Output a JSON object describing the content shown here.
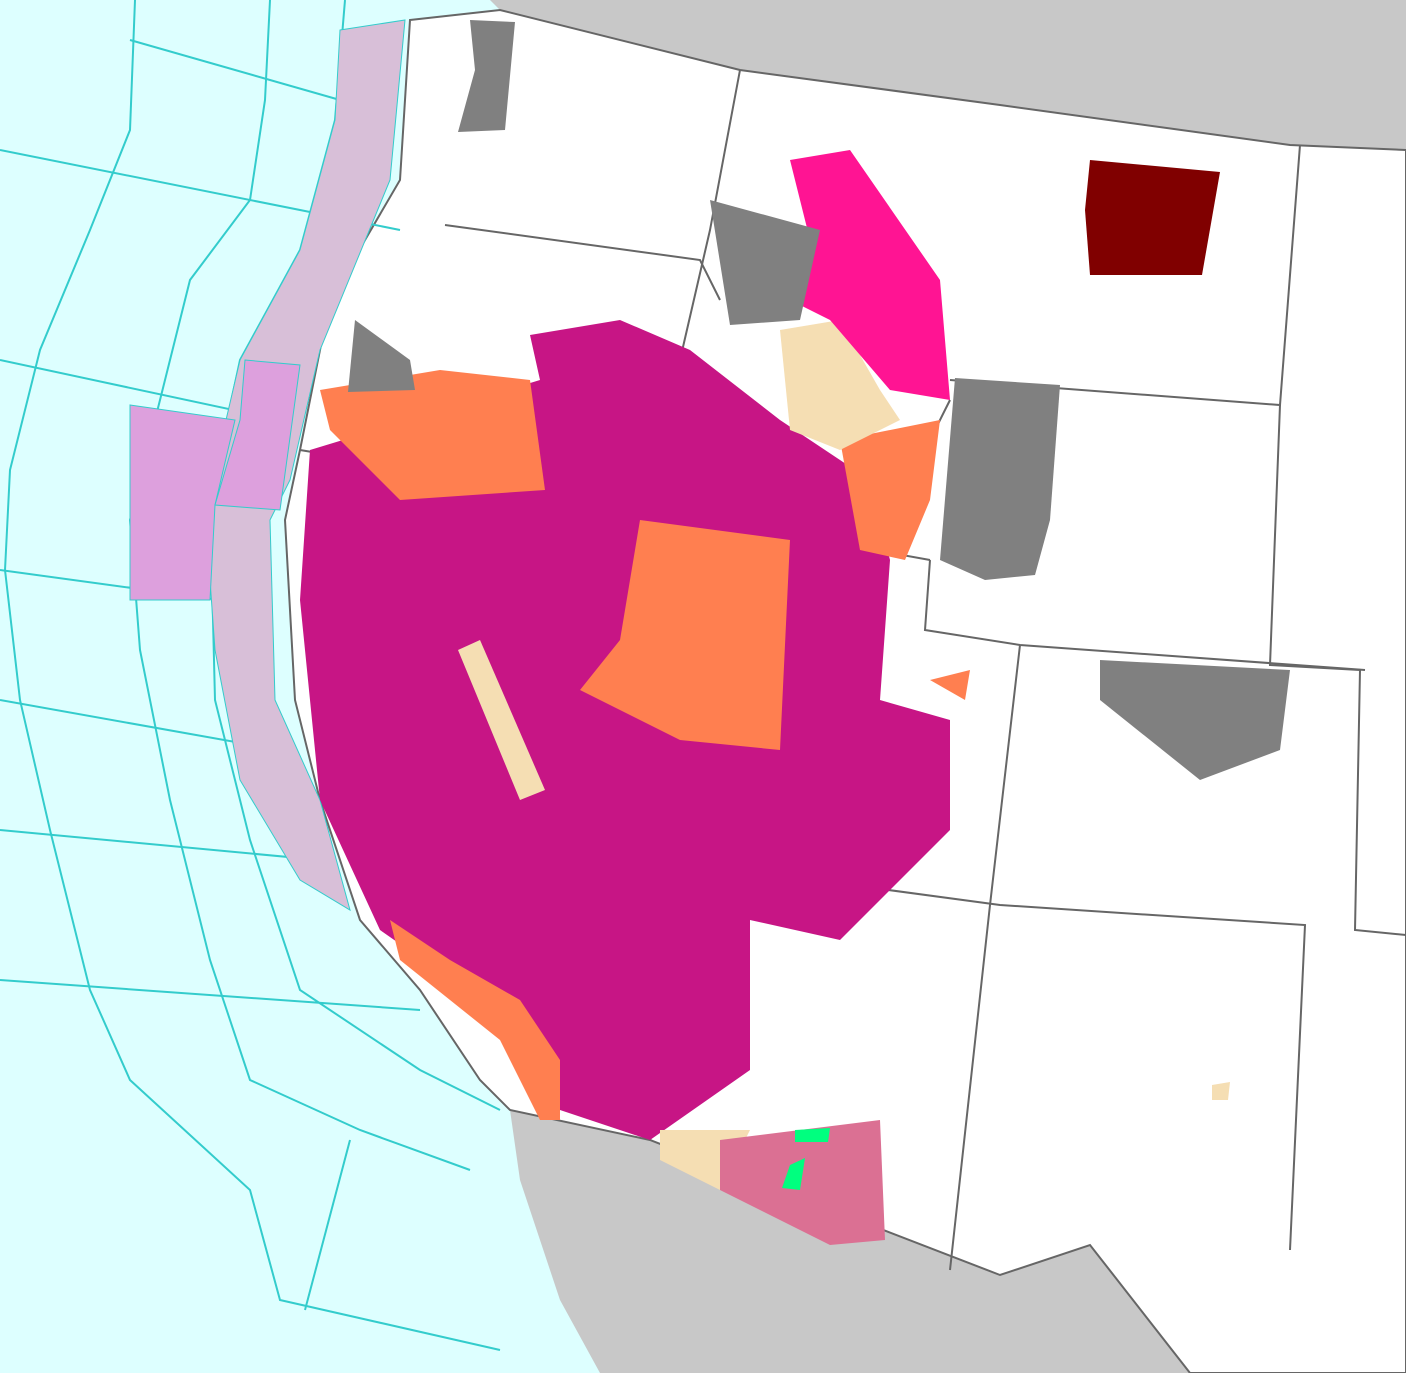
{
  "map": {
    "colors": {
      "ocean": "#ddffff",
      "foreign_land": "#c8c8c8",
      "us_land": "#ffffff",
      "marine_zone_lines": "#33cccc",
      "state_lines": "#666666",
      "county_lines": "#cccccc"
    },
    "hazard_colors": [
      {
        "color": "#c71585"
      },
      {
        "color": "#ff7f50"
      },
      {
        "color": "#ff1493"
      },
      {
        "color": "#808080"
      },
      {
        "color": "#800000"
      },
      {
        "color": "#f5deb3"
      },
      {
        "color": "#db7093"
      },
      {
        "color": "#00ff7f"
      },
      {
        "color": "#dda0dd"
      },
      {
        "color": "#d8bfd8"
      }
    ]
  }
}
